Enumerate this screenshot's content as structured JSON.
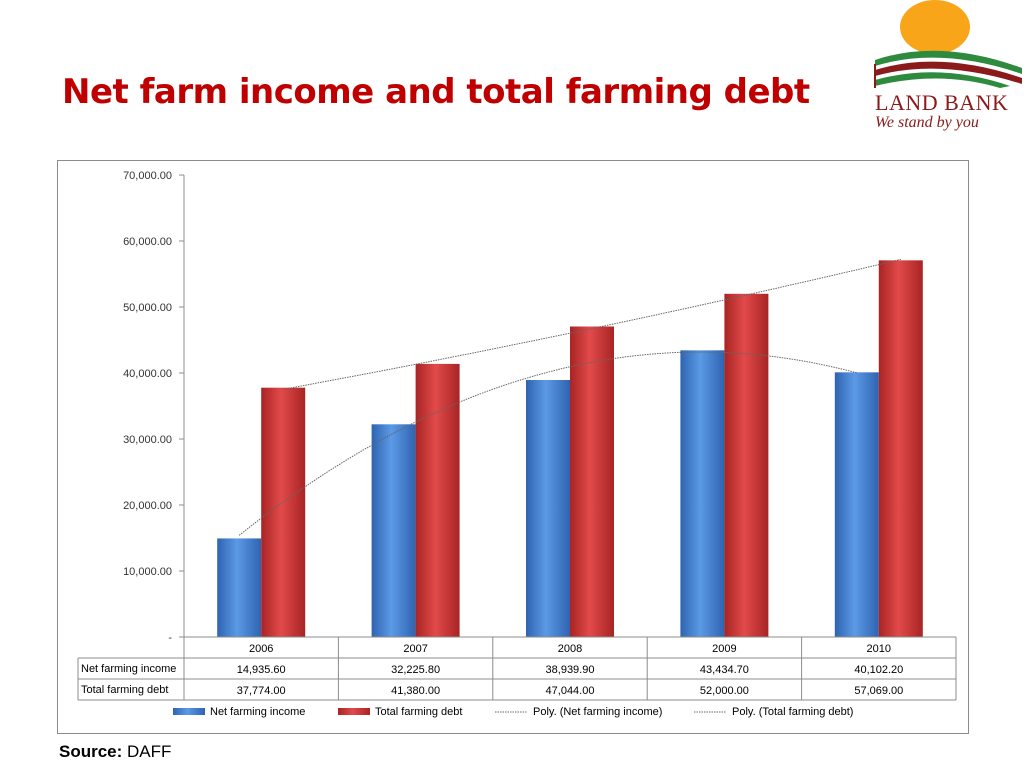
{
  "slide": {
    "title": "Net farm income and total farming debt",
    "source_label": "Source:",
    "source_value": "DAFF"
  },
  "logo": {
    "name": "LAND BANK",
    "tagline": "We stand by you"
  },
  "colors": {
    "title": "#c00000",
    "net_income": "#4a86d4",
    "total_debt": "#d93a3a",
    "trendline": "#555555"
  },
  "chart_data": {
    "type": "bar",
    "categories": [
      "2006",
      "2007",
      "2008",
      "2009",
      "2010"
    ],
    "series": [
      {
        "name": "Net farming income",
        "values": [
          14935.6,
          32225.8,
          38939.9,
          43434.7,
          40102.2
        ],
        "labels": [
          "14,935.60",
          "32,225.80",
          "38,939.90",
          "43,434.70",
          "40,102.20"
        ]
      },
      {
        "name": "Total farming debt",
        "values": [
          37774.0,
          41380.0,
          47044.0,
          52000.0,
          57069.0
        ],
        "labels": [
          "37,774.00",
          "41,380.00",
          "47,044.00",
          "52,000.00",
          "57,069.00"
        ]
      }
    ],
    "trendlines": [
      {
        "name": "Poly. (Net farming income)",
        "type": "polynomial",
        "series": "Net farming income"
      },
      {
        "name": "Poly. (Total farming debt)",
        "type": "polynomial",
        "series": "Total farming debt"
      }
    ],
    "ylim": [
      0,
      70000
    ],
    "yticks": [
      {
        "value": 0,
        "label": "-"
      },
      {
        "value": 10000,
        "label": "10,000.00"
      },
      {
        "value": 20000,
        "label": "20,000.00"
      },
      {
        "value": 30000,
        "label": "30,000.00"
      },
      {
        "value": 40000,
        "label": "40,000.00"
      },
      {
        "value": 50000,
        "label": "50,000.00"
      },
      {
        "value": 60000,
        "label": "60,000.00"
      },
      {
        "value": 70000,
        "label": "70,000.00"
      }
    ],
    "grid": false,
    "legend": "bottom",
    "data_table": true
  }
}
